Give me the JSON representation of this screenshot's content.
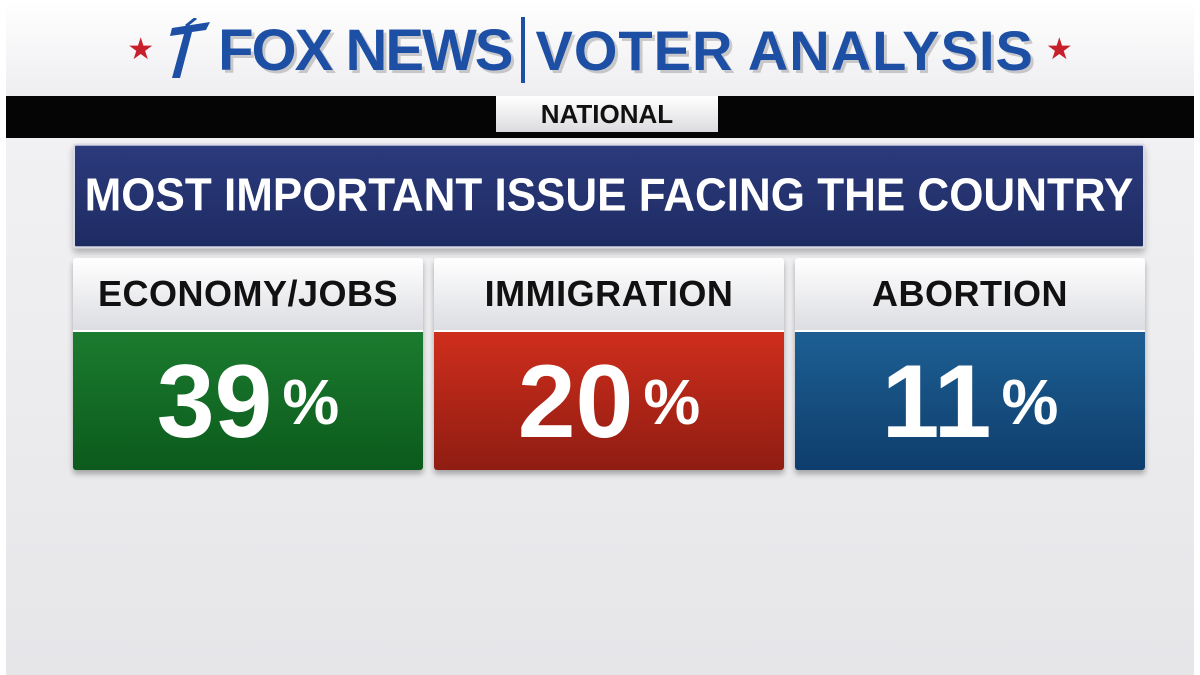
{
  "header": {
    "brand": "FOX NEWS",
    "title": "VOTER ANALYSIS",
    "scope": "NATIONAL"
  },
  "question": "MOST IMPORTANT ISSUE FACING THE COUNTRY",
  "results": [
    {
      "label": "ECONOMY/JOBS",
      "value": "39",
      "unit": "%",
      "color": "#0f6a23"
    },
    {
      "label": "IMMIGRATION",
      "value": "20",
      "unit": "%",
      "color": "#b5281a"
    },
    {
      "label": "ABORTION",
      "value": "11",
      "unit": "%",
      "color": "#154d80"
    }
  ],
  "icons": [
    "star-icon",
    "fox-news-logo-icon"
  ]
}
